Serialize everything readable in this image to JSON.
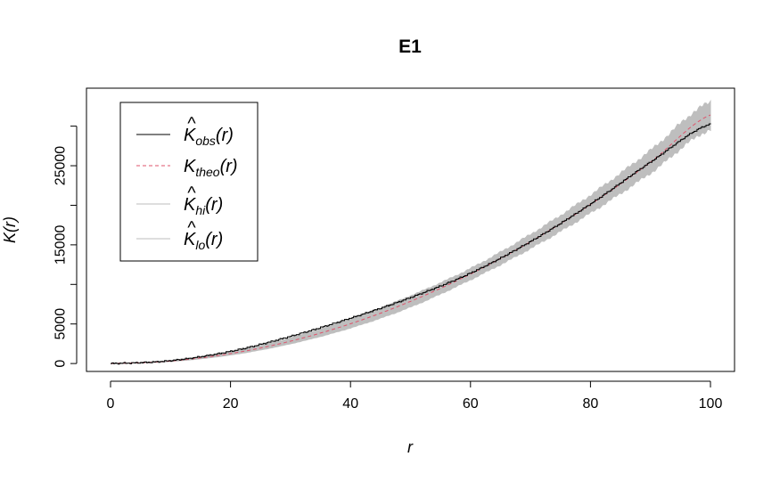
{
  "chart_data": {
    "type": "line",
    "title": "E1",
    "xlabel": "r",
    "ylabel": "K(r)",
    "xlim": [
      0,
      100
    ],
    "ylim": [
      -1000,
      34800
    ],
    "x_ticks": [
      0,
      20,
      40,
      60,
      80,
      100
    ],
    "y_ticks": [
      0,
      5000,
      10000,
      15000,
      20000,
      25000,
      30000
    ],
    "y_tick_labels": [
      "0",
      "5000",
      "",
      "15000",
      "",
      "25000",
      ""
    ],
    "grid": false,
    "legend_position": "top-left",
    "legend": [
      {
        "base": "K",
        "hat": true,
        "sub": "obs",
        "arg": "(r)",
        "style": "solid",
        "color": "#000000"
      },
      {
        "base": "K",
        "hat": false,
        "sub": "theo",
        "arg": "(r)",
        "style": "dashed",
        "color": "#DF536B"
      },
      {
        "base": "K",
        "hat": true,
        "sub": "hi",
        "arg": "(r)",
        "style": "solid",
        "color": "#bebebe"
      },
      {
        "base": "K",
        "hat": true,
        "sub": "lo",
        "arg": "(r)",
        "style": "solid",
        "color": "#bebebe"
      }
    ],
    "x": [
      0,
      10,
      20,
      30,
      40,
      50,
      60,
      70,
      80,
      90,
      100
    ],
    "series": [
      {
        "key": "obs",
        "color": "#000000",
        "values": [
          0,
          370,
          1550,
          3450,
          5750,
          8350,
          11450,
          15450,
          20200,
          25500,
          30300
        ]
      },
      {
        "key": "theo",
        "color": "#DF536B",
        "values": [
          0,
          314,
          1257,
          2827,
          5027,
          7854,
          11310,
          15394,
          20106,
          25447,
          31416
        ]
      },
      {
        "key": "hi",
        "color": "#bebebe",
        "values": [
          0,
          380,
          1500,
          3250,
          5650,
          8550,
          12000,
          16300,
          21250,
          26900,
          33000
        ]
      },
      {
        "key": "lo",
        "color": "#bebebe",
        "values": [
          0,
          260,
          1080,
          2500,
          4500,
          7150,
          10600,
          14550,
          19050,
          24100,
          29600
        ]
      }
    ]
  }
}
